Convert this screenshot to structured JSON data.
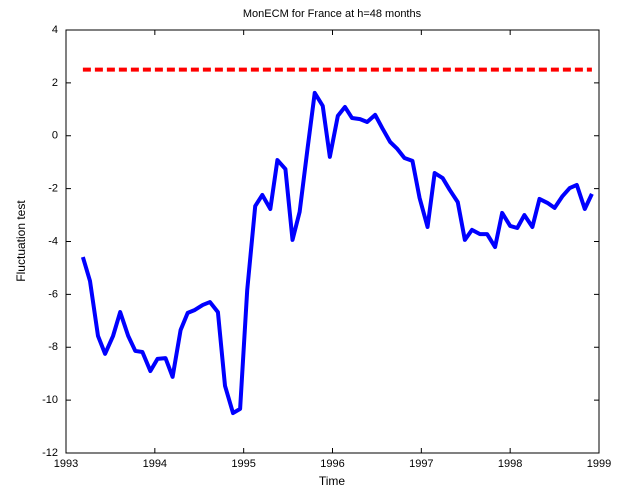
{
  "chart_data": {
    "type": "line",
    "title": "MonECM for France at h=48 months",
    "xlabel": "Time",
    "ylabel": "Fluctuation test",
    "xlim": [
      1993,
      1999
    ],
    "xticks": [
      1993,
      1994,
      1995,
      1996,
      1997,
      1998,
      1999
    ],
    "ylim": [
      -12,
      4
    ],
    "yticks": [
      -12,
      -10,
      -8,
      -6,
      -4,
      -2,
      0,
      2,
      4
    ],
    "grid": false,
    "series": [
      {
        "color": "#0000ff",
        "dashed": false,
        "x": [
          1993.19,
          1993.27,
          1993.36,
          1993.44,
          1993.53,
          1993.61,
          1993.7,
          1993.78,
          1993.86,
          1993.95,
          1994.03,
          1994.12,
          1994.2,
          1994.29,
          1994.37,
          1994.45,
          1994.54,
          1994.62,
          1994.71,
          1994.79,
          1994.88,
          1994.96,
          1995.04,
          1995.13,
          1995.21,
          1995.3,
          1995.38,
          1995.47,
          1995.55,
          1995.63,
          1995.72,
          1995.8,
          1995.89,
          1995.97,
          1996.06,
          1996.14,
          1996.22,
          1996.31,
          1996.39,
          1996.48,
          1996.56,
          1996.65,
          1996.73,
          1996.81,
          1996.9,
          1996.98,
          1997.07,
          1997.15,
          1997.24,
          1997.32,
          1997.41,
          1997.49,
          1997.57,
          1997.66,
          1997.74,
          1997.83,
          1997.91,
          1998.0,
          1998.08,
          1998.16,
          1998.25,
          1998.33,
          1998.42,
          1998.5,
          1998.59,
          1998.67,
          1998.75,
          1998.84,
          1998.92
        ],
        "values": [
          -4.59,
          -5.49,
          -7.57,
          -8.25,
          -7.57,
          -6.67,
          -7.57,
          -8.14,
          -8.18,
          -8.9,
          -8.44,
          -8.41,
          -9.12,
          -7.35,
          -6.7,
          -6.59,
          -6.4,
          -6.29,
          -6.67,
          -9.46,
          -10.49,
          -10.33,
          -5.83,
          -2.66,
          -2.24,
          -2.77,
          -0.92,
          -1.26,
          -3.94,
          -2.88,
          -0.46,
          1.62,
          1.13,
          -0.8,
          0.75,
          1.09,
          0.67,
          0.63,
          0.52,
          0.79,
          0.29,
          -0.24,
          -0.5,
          -0.84,
          -0.95,
          -2.35,
          -3.45,
          -1.41,
          -1.6,
          -2.05,
          -2.51,
          -3.94,
          -3.56,
          -3.72,
          -3.72,
          -4.21,
          -2.92,
          -3.41,
          -3.49,
          -3.0,
          -3.45,
          -2.39,
          -2.54,
          -2.73,
          -2.28,
          -1.98,
          -1.86,
          -2.77,
          -2.2
        ]
      },
      {
        "color": "#ff0000",
        "dashed": true,
        "x": [
          1993.19,
          1998.92
        ],
        "values": [
          2.5,
          2.5
        ]
      }
    ]
  }
}
